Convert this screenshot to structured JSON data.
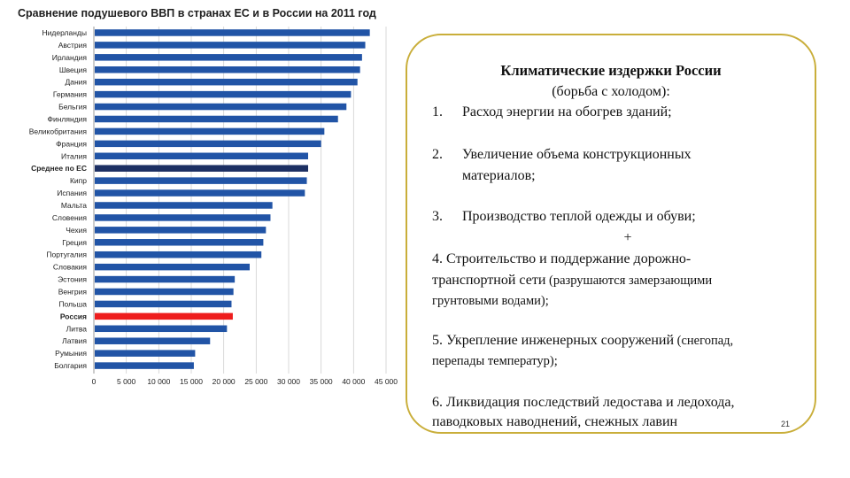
{
  "chart_data": {
    "type": "bar",
    "orientation": "horizontal",
    "title": "Сравнение подушевого ВВП в странах ЕС и в России на 2011 год",
    "categories": [
      "Нидерланды",
      "Австрия",
      "Ирландия",
      "Швеция",
      "Дания",
      "Германия",
      "Бельгия",
      "Финляндия",
      "Великобритания",
      "Франция",
      "Италия",
      "Среднее по ЕС",
      "Кипр",
      "Испания",
      "Мальта",
      "Словения",
      "Чехия",
      "Греция",
      "Португалия",
      "Словакия",
      "Эстония",
      "Венгрия",
      "Польша",
      "Россия",
      "Литва",
      "Латвия",
      "Румыния",
      "Болгария"
    ],
    "values": [
      42500,
      41800,
      41300,
      41000,
      40600,
      39600,
      38900,
      37600,
      35500,
      35000,
      33000,
      33000,
      32800,
      32500,
      27500,
      27200,
      26500,
      26100,
      25800,
      24000,
      21700,
      21500,
      21200,
      21400,
      20500,
      17900,
      15600,
      15400
    ],
    "highlight": {
      "Среднее по ЕС": "#1c2f63",
      "Россия": "#ee1d1d"
    },
    "bar_color": "#2154a6",
    "xlim": [
      0,
      45000
    ],
    "xticks": [
      "0",
      "5 000",
      "10 000",
      "15 000",
      "20 000",
      "25 000",
      "30 000",
      "35 000",
      "40 000",
      "45 000"
    ],
    "xlabel": "",
    "ylabel": "",
    "grid": true
  },
  "card": {
    "heading": "Климатические издержки России",
    "subheading": "(борьба с холодом):",
    "item1_num": "1.",
    "item1": "Расход энергии на обогрев зданий;",
    "item2_num": "2.",
    "item2_line1": "Увеличение объема конструкционных",
    "item2_line2": "материалов;",
    "item3_num": "3.",
    "item3": "Производство теплой одежды и обуви;",
    "plus": "+",
    "item4_line1": "4. Строительство и поддержание дорожно-",
    "item4_line2a": "транспортной сети",
    "item4_line2b": " (разрушаются замерзающими",
    "item4_line3": "грунтовыми водами);",
    "item5_line1a": "5. Укрепление инженерных сооружений",
    "item5_line1b": " (снегопад,",
    "item5_line2": "перепады температур);",
    "item6_line1": "6. Ликвидация последствий ледостава и ледохода,",
    "item6_line2": "паводковых наводнений, снежных лавин"
  },
  "page_number": "21"
}
